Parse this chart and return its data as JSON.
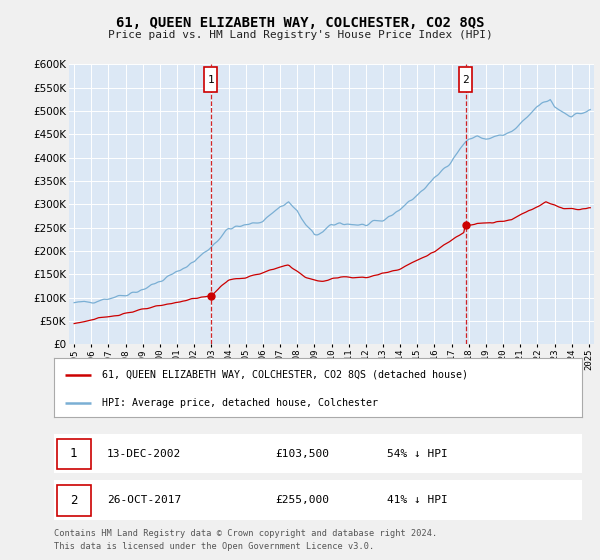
{
  "title": "61, QUEEN ELIZABETH WAY, COLCHESTER, CO2 8QS",
  "subtitle": "Price paid vs. HM Land Registry's House Price Index (HPI)",
  "legend_line1": "61, QUEEN ELIZABETH WAY, COLCHESTER, CO2 8QS (detached house)",
  "legend_line2": "HPI: Average price, detached house, Colchester",
  "annotation1_date": "13-DEC-2002",
  "annotation1_price": "£103,500",
  "annotation1_hpi": "54% ↓ HPI",
  "annotation1_year": 2002.958,
  "annotation1_value": 103500,
  "annotation2_date": "26-OCT-2017",
  "annotation2_price": "£255,000",
  "annotation2_hpi": "41% ↓ HPI",
  "annotation2_year": 2017.833,
  "annotation2_value": 255000,
  "footer1": "Contains HM Land Registry data © Crown copyright and database right 2024.",
  "footer2": "This data is licensed under the Open Government Licence v3.0.",
  "ylim": [
    0,
    600000
  ],
  "yticks": [
    0,
    50000,
    100000,
    150000,
    200000,
    250000,
    300000,
    350000,
    400000,
    450000,
    500000,
    550000,
    600000
  ],
  "xlim_start": 1994.7,
  "xlim_end": 2025.3,
  "bg_color": "#dce8f5",
  "fig_bg_color": "#f0f0f0",
  "grid_color": "#ffffff",
  "red_line_color": "#cc0000",
  "blue_line_color": "#7aafd4"
}
